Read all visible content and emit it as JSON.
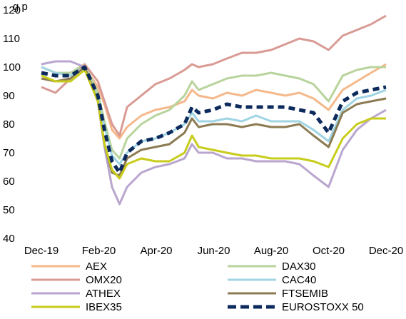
{
  "chart_data": {
    "type": "line",
    "title": "",
    "title_fragment": "g p",
    "xlabel": "",
    "ylabel": "",
    "x_tick_labels": [
      "Dec-19",
      "Feb-20",
      "Apr-20",
      "Jun-20",
      "Aug-20",
      "Oct-20",
      "Dec-20"
    ],
    "y_tick_labels": [
      "40",
      "50",
      "60",
      "70",
      "80",
      "90",
      "100",
      "110",
      "120"
    ],
    "ylim": [
      40,
      120
    ],
    "xlim": [
      "2019-12-31",
      "2020-12-31"
    ],
    "grid": false,
    "legend_position": "bottom",
    "x": [
      "2019-12-31",
      "2020-01-15",
      "2020-01-31",
      "2020-02-15",
      "2020-02-29",
      "2020-03-07",
      "2020-03-15",
      "2020-03-23",
      "2020-03-31",
      "2020-04-15",
      "2020-04-30",
      "2020-05-15",
      "2020-05-31",
      "2020-06-08",
      "2020-06-15",
      "2020-06-30",
      "2020-07-15",
      "2020-07-31",
      "2020-08-15",
      "2020-08-31",
      "2020-09-15",
      "2020-09-30",
      "2020-10-15",
      "2020-10-31",
      "2020-11-15",
      "2020-11-30",
      "2020-12-15",
      "2020-12-31"
    ],
    "series": [
      {
        "name": "AEX",
        "color": "#f5b88a",
        "dashed": false,
        "values": [
          100,
          98,
          97,
          100,
          93,
          87,
          78,
          75,
          79,
          83,
          85,
          86,
          88,
          92,
          90,
          89,
          91,
          90,
          92,
          91,
          90,
          91,
          89,
          85,
          92,
          95,
          98,
          101
        ]
      },
      {
        "name": "DAX30",
        "color": "#b8d49c",
        "dashed": false,
        "values": [
          100,
          98,
          98,
          101,
          91,
          81,
          71,
          68,
          75,
          80,
          83,
          85,
          90,
          95,
          92,
          94,
          96,
          97,
          97,
          98,
          97,
          96,
          94,
          88,
          97,
          99,
          100,
          100
        ]
      },
      {
        "name": "OMX20",
        "color": "#d99a94",
        "dashed": false,
        "values": [
          93,
          91,
          96,
          101,
          95,
          88,
          80,
          76,
          86,
          90,
          94,
          96,
          99,
          101,
          100,
          101,
          103,
          105,
          105,
          106,
          108,
          110,
          109,
          106,
          111,
          113,
          115,
          118
        ]
      },
      {
        "name": "CAC40",
        "color": "#9fd4e3",
        "dashed": false,
        "values": [
          100,
          98,
          97,
          100,
          89,
          79,
          69,
          66,
          70,
          74,
          75,
          77,
          80,
          84,
          81,
          81,
          82,
          81,
          83,
          81,
          81,
          81,
          78,
          74,
          85,
          89,
          90,
          92
        ]
      },
      {
        "name": "ATHEX",
        "color": "#b9a6cf",
        "dashed": false,
        "values": [
          101,
          102,
          102,
          100,
          88,
          72,
          58,
          52,
          58,
          63,
          65,
          66,
          68,
          73,
          70,
          70,
          68,
          68,
          67,
          67,
          67,
          66,
          62,
          58,
          71,
          78,
          82,
          85
        ]
      },
      {
        "name": "FTSEMIB",
        "color": "#8c7b52",
        "dashed": false,
        "values": [
          96,
          95,
          96,
          100,
          88,
          73,
          63,
          62,
          68,
          71,
          72,
          73,
          77,
          82,
          79,
          80,
          80,
          79,
          80,
          79,
          79,
          80,
          76,
          72,
          84,
          87,
          88,
          89
        ]
      },
      {
        "name": "IBEX35",
        "color": "#c8cc1a",
        "dashed": false,
        "values": [
          97,
          95,
          95,
          99,
          88,
          73,
          64,
          61,
          66,
          68,
          67,
          67,
          70,
          76,
          72,
          71,
          70,
          69,
          69,
          68,
          68,
          68,
          67,
          65,
          75,
          80,
          82,
          82
        ]
      },
      {
        "name": "EUROSTOXX 50",
        "color": "#0d2a5c",
        "dashed": true,
        "values": [
          98,
          97,
          97,
          100,
          90,
          78,
          67,
          63,
          70,
          74,
          75,
          77,
          80,
          86,
          84,
          85,
          87,
          86,
          86,
          86,
          86,
          85,
          84,
          77,
          88,
          91,
          92,
          93
        ]
      }
    ]
  }
}
